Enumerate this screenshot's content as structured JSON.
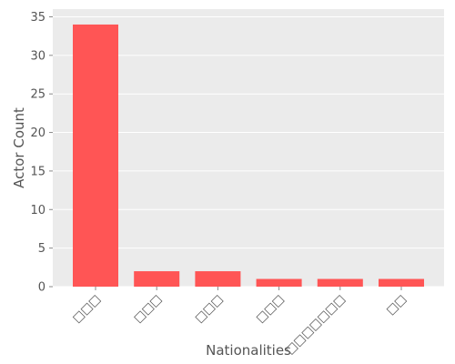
{
  "chart_data": {
    "type": "bar",
    "categories": [
      "□□□",
      "□□□",
      "□□□",
      "□□□",
      "□□□□□□□",
      "□□"
    ],
    "values": [
      34,
      2,
      2,
      1,
      1,
      1
    ],
    "xlabel": "Nationalities",
    "ylabel": "Actor Count",
    "ylim": [
      0,
      36
    ],
    "yticks": [
      0,
      5,
      10,
      15,
      20,
      25,
      30,
      35
    ],
    "grid": true,
    "colors": {
      "bar": "#ff5555",
      "panel_bg": "#ebebeb",
      "grid": "#ffffff",
      "text": "#555555"
    }
  }
}
